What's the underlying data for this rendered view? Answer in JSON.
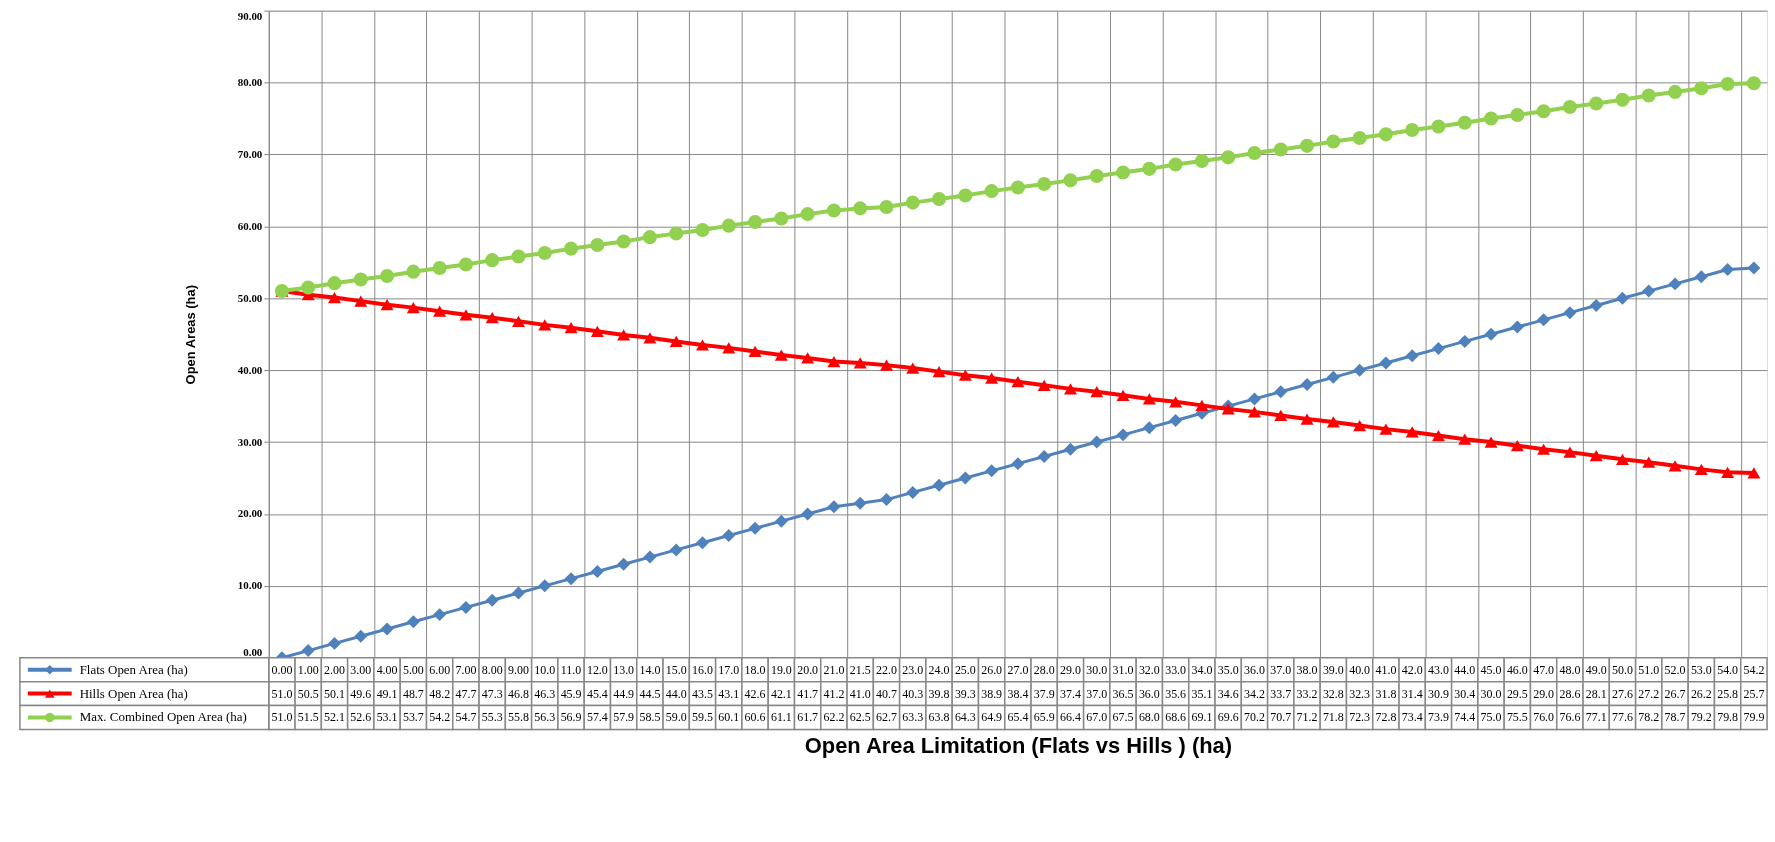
{
  "chart_data": {
    "type": "line",
    "xlabel": "Open Area Limitation (Flats vs Hills ) (ha)",
    "ylabel": "Open Areas (ha)",
    "categories": [
      null,
      null,
      null,
      null,
      null,
      null,
      null,
      null,
      null,
      null,
      null,
      null,
      null,
      null,
      null,
      null,
      null,
      null,
      null,
      null,
      null,
      null,
      null,
      null,
      null,
      null,
      null,
      null,
      null,
      null,
      null,
      null,
      null,
      null,
      null,
      null,
      null,
      null,
      null,
      null,
      null,
      null,
      null,
      null,
      null,
      null,
      null,
      null,
      null,
      null,
      null,
      null,
      null,
      null,
      null,
      null,
      null
    ],
    "series": [
      {
        "name": "Flats Open Area (ha)",
        "color": "#4f81bd",
        "marker": "diamond",
        "values": [
          0,
          1,
          2,
          3,
          4,
          5,
          6,
          7,
          8,
          9,
          10,
          11,
          12,
          13,
          14,
          15,
          16,
          17,
          18,
          19,
          20,
          21,
          21.5,
          22,
          23,
          24,
          25,
          26,
          27,
          28,
          29,
          30,
          31,
          32,
          33,
          34,
          35,
          36,
          37,
          38,
          39,
          40,
          41,
          42,
          43,
          44,
          45,
          46,
          47,
          48,
          49,
          50,
          51,
          52,
          53,
          54,
          54.2
        ],
        "value_labels": [
          "0.00",
          "1.00",
          "2.00",
          "3.00",
          "4.00",
          "5.00",
          "6.00",
          "7.00",
          "8.00",
          "9.00",
          "10.0",
          "11.0",
          "12.0",
          "13.0",
          "14.0",
          "15.0",
          "16.0",
          "17.0",
          "18.0",
          "19.0",
          "20.0",
          "21.0",
          "21.5",
          "22.0",
          "23.0",
          "24.0",
          "25.0",
          "26.0",
          "27.0",
          "28.0",
          "29.0",
          "30.0",
          "31.0",
          "32.0",
          "33.0",
          "34.0",
          "35.0",
          "36.0",
          "37.0",
          "38.0",
          "39.0",
          "40.0",
          "41.0",
          "42.0",
          "43.0",
          "44.0",
          "45.0",
          "46.0",
          "47.0",
          "48.0",
          "49.0",
          "50.0",
          "51.0",
          "52.0",
          "53.0",
          "54.0",
          "54.2"
        ]
      },
      {
        "name": "Hills Open Area (ha)",
        "color": "#ff0000",
        "marker": "triangle",
        "values": [
          51.0,
          50.5,
          50.1,
          49.6,
          49.1,
          48.7,
          48.2,
          47.7,
          47.3,
          46.8,
          46.3,
          45.9,
          45.4,
          44.9,
          44.5,
          44.0,
          43.5,
          43.1,
          42.6,
          42.1,
          41.7,
          41.2,
          41.0,
          40.7,
          40.3,
          39.8,
          39.3,
          38.9,
          38.4,
          37.9,
          37.4,
          37.0,
          36.5,
          36.0,
          35.6,
          35.1,
          34.6,
          34.2,
          33.7,
          33.2,
          32.8,
          32.3,
          31.8,
          31.4,
          30.9,
          30.4,
          30.0,
          29.5,
          29.0,
          28.6,
          28.1,
          27.6,
          27.2,
          26.7,
          26.2,
          25.8,
          25.7
        ],
        "value_labels": [
          "51.0",
          "50.5",
          "50.1",
          "49.6",
          "49.1",
          "48.7",
          "48.2",
          "47.7",
          "47.3",
          "46.8",
          "46.3",
          "45.9",
          "45.4",
          "44.9",
          "44.5",
          "44.0",
          "43.5",
          "43.1",
          "42.6",
          "42.1",
          "41.7",
          "41.2",
          "41.0",
          "40.7",
          "40.3",
          "39.8",
          "39.3",
          "38.9",
          "38.4",
          "37.9",
          "37.4",
          "37.0",
          "36.5",
          "36.0",
          "35.6",
          "35.1",
          "34.6",
          "34.2",
          "33.7",
          "33.2",
          "32.8",
          "32.3",
          "31.8",
          "31.4",
          "30.9",
          "30.4",
          "30.0",
          "29.5",
          "29.0",
          "28.6",
          "28.1",
          "27.6",
          "27.2",
          "26.7",
          "26.2",
          "25.8",
          "25.7"
        ]
      },
      {
        "name": "Max. Combined Open Area (ha)",
        "color": "#92d050",
        "marker": "circle",
        "values": [
          51.0,
          51.5,
          52.1,
          52.6,
          53.1,
          53.7,
          54.2,
          54.7,
          55.3,
          55.8,
          56.3,
          56.9,
          57.4,
          57.9,
          58.5,
          59.0,
          59.5,
          60.1,
          60.6,
          61.1,
          61.7,
          62.2,
          62.5,
          62.7,
          63.3,
          63.8,
          64.3,
          64.9,
          65.4,
          65.9,
          66.4,
          67.0,
          67.5,
          68.0,
          68.6,
          69.1,
          69.6,
          70.2,
          70.7,
          71.2,
          71.8,
          72.3,
          72.8,
          73.4,
          73.9,
          74.4,
          75.0,
          75.5,
          76.0,
          76.6,
          77.1,
          77.6,
          78.2,
          78.7,
          79.2,
          79.8,
          79.9
        ],
        "value_labels": [
          "51.0",
          "51.5",
          "52.1",
          "52.6",
          "53.1",
          "53.7",
          "54.2",
          "54.7",
          "55.3",
          "55.8",
          "56.3",
          "56.9",
          "57.4",
          "57.9",
          "58.5",
          "59.0",
          "59.5",
          "60.1",
          "60.6",
          "61.1",
          "61.7",
          "62.2",
          "62.5",
          "62.7",
          "63.3",
          "63.8",
          "64.3",
          "64.9",
          "65.4",
          "65.9",
          "66.4",
          "67.0",
          "67.5",
          "68.0",
          "68.6",
          "69.1",
          "69.6",
          "70.2",
          "70.7",
          "71.2",
          "71.8",
          "72.3",
          "72.8",
          "73.4",
          "73.9",
          "74.4",
          "75.0",
          "75.5",
          "76.0",
          "76.6",
          "77.1",
          "77.6",
          "78.2",
          "78.7",
          "79.2",
          "79.8",
          "79.9"
        ]
      }
    ],
    "ylim": [
      0,
      90
    ],
    "yticks": [
      {
        "value": 0,
        "label": "0.00"
      },
      {
        "value": 10,
        "label": "10.00"
      },
      {
        "value": 20,
        "label": "20.00"
      },
      {
        "value": 30,
        "label": "30.00"
      },
      {
        "value": 40,
        "label": "40.00"
      },
      {
        "value": 50,
        "label": "50.00"
      },
      {
        "value": 60,
        "label": "60.00"
      },
      {
        "value": 70,
        "label": "70.00"
      },
      {
        "value": 80,
        "label": "80.00"
      },
      {
        "value": 90,
        "label": "90.00"
      }
    ],
    "grid": true,
    "legend": "bottom",
    "tick_labels": "y",
    "line_style": "solid"
  }
}
